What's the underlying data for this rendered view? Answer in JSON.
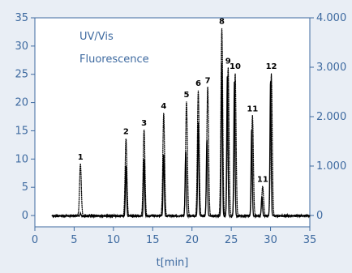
{
  "chart_data": {
    "type": "line",
    "xlabel": "t[min]",
    "x_ticks": [
      "0",
      "5",
      "10",
      "15",
      "20",
      "25",
      "30",
      "35"
    ],
    "y_left_ticks": [
      "0",
      "5",
      "10",
      "15",
      "20",
      "25",
      "30",
      "35"
    ],
    "y_right_ticks": [
      "0",
      "1.000",
      "2.000",
      "3.000",
      "4.000"
    ],
    "xlim": [
      0,
      35
    ],
    "ylim_left": [
      -2,
      35
    ],
    "ylim_right": [
      -230,
      4000
    ],
    "legend": [
      "UV/Vis",
      "Fluorescence"
    ],
    "legend_position": "top-left",
    "peaks": [
      {
        "label": "1",
        "t": 5.8,
        "height": 9.5
      },
      {
        "label": "2",
        "t": 11.6,
        "height": 14.0
      },
      {
        "label": "3",
        "t": 13.9,
        "height": 15.5
      },
      {
        "label": "4",
        "t": 16.4,
        "height": 18.5
      },
      {
        "label": "5",
        "t": 19.3,
        "height": 20.5
      },
      {
        "label": "6",
        "t": 20.8,
        "height": 22.5
      },
      {
        "label": "7",
        "t": 22.0,
        "height": 23.0
      },
      {
        "label": "8",
        "t": 23.8,
        "height": 33.5
      },
      {
        "label": "9",
        "t": 24.6,
        "height": 26.5
      },
      {
        "label": "10",
        "t": 25.5,
        "height": 25.5
      },
      {
        "label": "11",
        "t": 27.7,
        "height": 18.0
      },
      {
        "label": "11",
        "t": 29.0,
        "height": 5.5
      },
      {
        "label": "12",
        "t": 30.1,
        "height": 25.5
      }
    ],
    "uv_trace": [
      {
        "t": 5.8,
        "h": 0.5
      },
      {
        "t": 11.6,
        "h": 9.0
      },
      {
        "t": 13.9,
        "h": 10.0
      },
      {
        "t": 16.4,
        "h": 11.0
      },
      {
        "t": 19.2,
        "h": 11.5
      },
      {
        "t": 20.8,
        "h": 16.5
      },
      {
        "t": 21.9,
        "h": 13.5
      },
      {
        "t": 23.8,
        "h": 27.0
      },
      {
        "t": 24.5,
        "h": 25.0
      },
      {
        "t": 25.4,
        "h": 24.0
      },
      {
        "t": 27.6,
        "h": 15.5
      },
      {
        "t": 28.9,
        "h": 3.5
      },
      {
        "t": 30.0,
        "h": 24.0
      }
    ],
    "colors": {
      "background": "#e9eef5",
      "plot_background": "#ffffff",
      "axis": "#3e6aa0",
      "trace": "#000000"
    }
  }
}
